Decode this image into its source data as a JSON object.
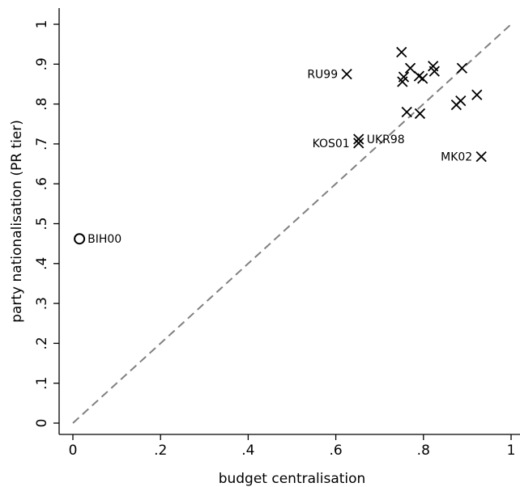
{
  "chart_data": {
    "type": "scatter",
    "title": "",
    "xlabel": "budget centralisation",
    "ylabel": "party nationalisation (PR tier)",
    "xlim": [
      0,
      1
    ],
    "ylim": [
      0,
      1
    ],
    "x_ticks": [
      "0",
      ".2",
      ".4",
      ".6",
      ".8",
      "1"
    ],
    "x_tick_values": [
      0,
      0.2,
      0.4,
      0.6,
      0.8,
      1
    ],
    "y_ticks": [
      "0",
      ".1",
      ".2",
      ".3",
      ".4",
      ".5",
      ".6",
      ".7",
      ".8",
      ".9",
      "1"
    ],
    "y_tick_values": [
      0,
      0.1,
      0.2,
      0.3,
      0.4,
      0.5,
      0.6,
      0.7,
      0.8,
      0.9,
      1
    ],
    "grid": false,
    "reference_line": {
      "style": "dashed",
      "color": "#808080",
      "from": [
        0,
        0
      ],
      "to": [
        1,
        1
      ]
    },
    "points": [
      {
        "x": 0.015,
        "y": 0.462,
        "marker": "o",
        "label": "BIH00",
        "label_side": "right"
      },
      {
        "x": 0.625,
        "y": 0.875,
        "marker": "x",
        "label": "RU99",
        "label_side": "left"
      },
      {
        "x": 0.652,
        "y": 0.712,
        "marker": "x",
        "label": "UKR98",
        "label_side": "right"
      },
      {
        "x": 0.652,
        "y": 0.702,
        "marker": "x",
        "label": "KOS01",
        "label_side": "left"
      },
      {
        "x": 0.932,
        "y": 0.668,
        "marker": "x",
        "label": "MK02",
        "label_side": "left"
      },
      {
        "x": 0.75,
        "y": 0.93,
        "marker": "x",
        "label": ""
      },
      {
        "x": 0.77,
        "y": 0.89,
        "marker": "x",
        "label": ""
      },
      {
        "x": 0.755,
        "y": 0.868,
        "marker": "x",
        "label": ""
      },
      {
        "x": 0.752,
        "y": 0.856,
        "marker": "x",
        "label": ""
      },
      {
        "x": 0.79,
        "y": 0.87,
        "marker": "x",
        "label": ""
      },
      {
        "x": 0.798,
        "y": 0.864,
        "marker": "x",
        "label": ""
      },
      {
        "x": 0.822,
        "y": 0.895,
        "marker": "x",
        "label": ""
      },
      {
        "x": 0.825,
        "y": 0.882,
        "marker": "x",
        "label": ""
      },
      {
        "x": 0.888,
        "y": 0.89,
        "marker": "x",
        "label": ""
      },
      {
        "x": 0.762,
        "y": 0.78,
        "marker": "x",
        "label": ""
      },
      {
        "x": 0.792,
        "y": 0.776,
        "marker": "x",
        "label": ""
      },
      {
        "x": 0.875,
        "y": 0.798,
        "marker": "x",
        "label": ""
      },
      {
        "x": 0.885,
        "y": 0.808,
        "marker": "x",
        "label": ""
      },
      {
        "x": 0.922,
        "y": 0.823,
        "marker": "x",
        "label": ""
      }
    ]
  }
}
